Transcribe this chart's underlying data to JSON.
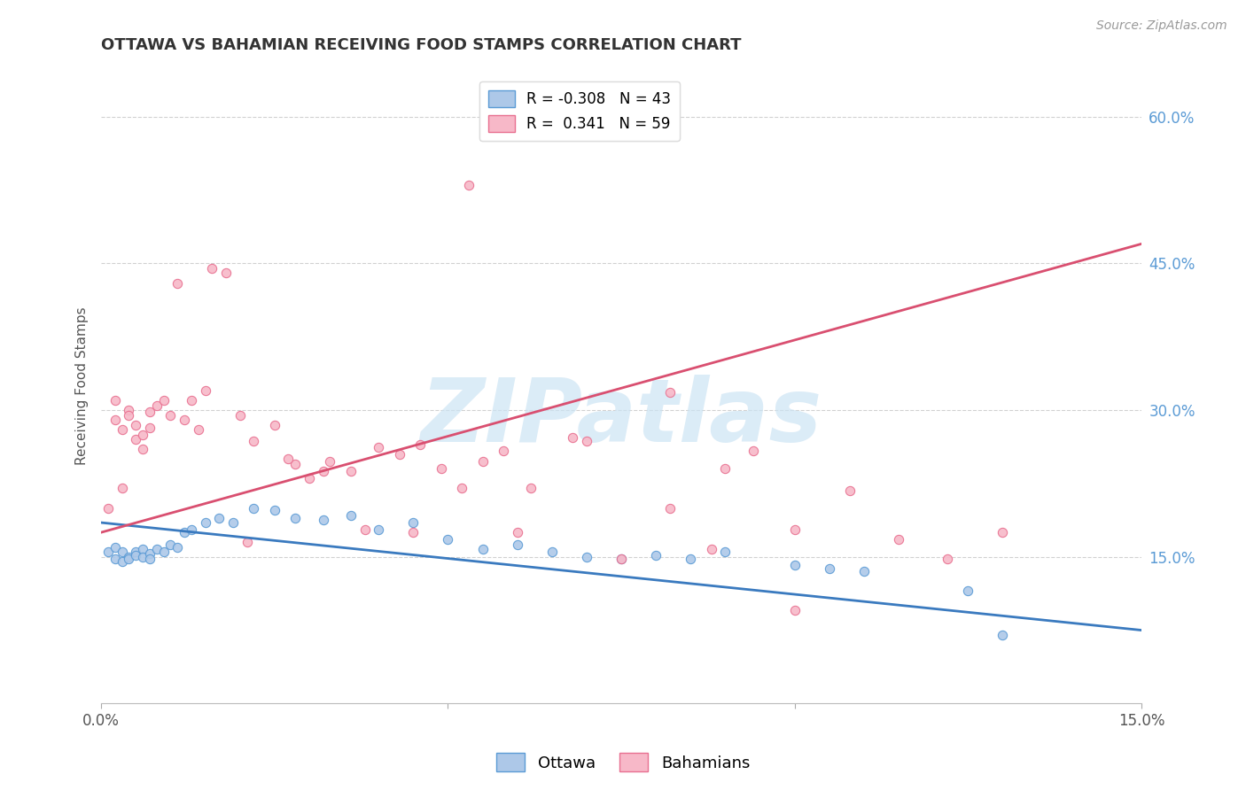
{
  "title": "OTTAWA VS BAHAMIAN RECEIVING FOOD STAMPS CORRELATION CHART",
  "source": "Source: ZipAtlas.com",
  "ylabel": "Receiving Food Stamps",
  "xlim": [
    0.0,
    0.15
  ],
  "ylim": [
    0.0,
    0.65
  ],
  "x_tick_positions": [
    0.0,
    0.05,
    0.1,
    0.15
  ],
  "x_tick_labels": [
    "0.0%",
    "",
    "",
    "15.0%"
  ],
  "y_ticks_right": [
    0.15,
    0.3,
    0.45,
    0.6
  ],
  "y_tick_labels_right": [
    "15.0%",
    "30.0%",
    "45.0%",
    "60.0%"
  ],
  "ottawa_fill_color": "#adc8e8",
  "ottawa_edge_color": "#5b9bd5",
  "bahamian_fill_color": "#f7b8c8",
  "bahamian_edge_color": "#e87090",
  "ottawa_trend_color": "#3a7abf",
  "bahamian_trend_color": "#d94f70",
  "R_ottawa": -0.308,
  "N_ottawa": 43,
  "R_bahamian": 0.341,
  "N_bahamian": 59,
  "watermark_text": "ZIPatlas",
  "watermark_color": "#cce4f4",
  "background_color": "#ffffff",
  "grid_color": "#cccccc",
  "ottawa_scatter_x": [
    0.001,
    0.002,
    0.002,
    0.003,
    0.003,
    0.004,
    0.004,
    0.005,
    0.005,
    0.006,
    0.006,
    0.007,
    0.007,
    0.008,
    0.009,
    0.01,
    0.011,
    0.012,
    0.013,
    0.015,
    0.017,
    0.019,
    0.022,
    0.025,
    0.028,
    0.032,
    0.036,
    0.04,
    0.045,
    0.05,
    0.055,
    0.06,
    0.065,
    0.07,
    0.075,
    0.08,
    0.085,
    0.09,
    0.1,
    0.105,
    0.11,
    0.125,
    0.13
  ],
  "ottawa_scatter_y": [
    0.155,
    0.148,
    0.16,
    0.145,
    0.155,
    0.15,
    0.148,
    0.155,
    0.152,
    0.158,
    0.15,
    0.153,
    0.148,
    0.158,
    0.155,
    0.162,
    0.16,
    0.175,
    0.178,
    0.185,
    0.19,
    0.185,
    0.2,
    0.198,
    0.19,
    0.188,
    0.192,
    0.178,
    0.185,
    0.168,
    0.158,
    0.162,
    0.155,
    0.15,
    0.148,
    0.152,
    0.148,
    0.155,
    0.142,
    0.138,
    0.135,
    0.115,
    0.07
  ],
  "bahamian_scatter_x": [
    0.001,
    0.002,
    0.002,
    0.003,
    0.003,
    0.004,
    0.004,
    0.005,
    0.005,
    0.006,
    0.006,
    0.007,
    0.007,
    0.008,
    0.009,
    0.01,
    0.011,
    0.012,
    0.013,
    0.014,
    0.015,
    0.016,
    0.018,
    0.02,
    0.022,
    0.025,
    0.028,
    0.03,
    0.033,
    0.036,
    0.04,
    0.043,
    0.046,
    0.049,
    0.052,
    0.055,
    0.058,
    0.062,
    0.068,
    0.075,
    0.082,
    0.088,
    0.094,
    0.1,
    0.108,
    0.115,
    0.122,
    0.13,
    0.038,
    0.027,
    0.032,
    0.021,
    0.045,
    0.06,
    0.07,
    0.082,
    0.09,
    0.1,
    0.053
  ],
  "bahamian_scatter_y": [
    0.2,
    0.29,
    0.31,
    0.22,
    0.28,
    0.3,
    0.295,
    0.27,
    0.285,
    0.26,
    0.275,
    0.298,
    0.282,
    0.305,
    0.31,
    0.295,
    0.43,
    0.29,
    0.31,
    0.28,
    0.32,
    0.445,
    0.44,
    0.295,
    0.268,
    0.285,
    0.245,
    0.23,
    0.248,
    0.238,
    0.262,
    0.255,
    0.265,
    0.24,
    0.22,
    0.248,
    0.258,
    0.22,
    0.272,
    0.148,
    0.318,
    0.158,
    0.258,
    0.095,
    0.218,
    0.168,
    0.148,
    0.175,
    0.178,
    0.25,
    0.238,
    0.165,
    0.175,
    0.175,
    0.268,
    0.2,
    0.24,
    0.178,
    0.53
  ]
}
